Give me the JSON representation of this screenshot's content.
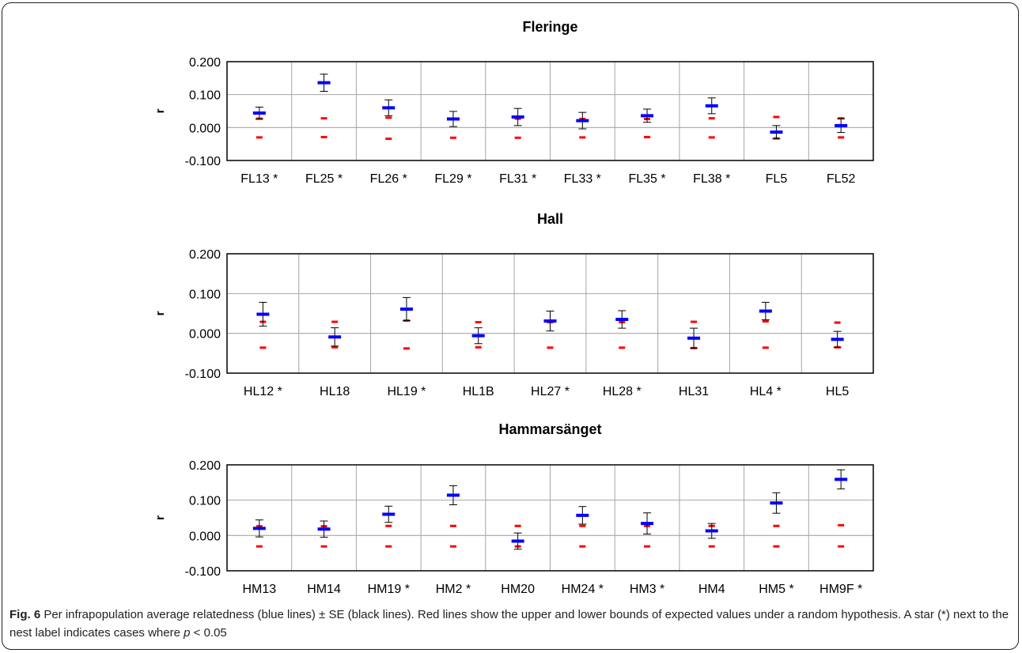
{
  "chart_data": [
    {
      "type": "scatter",
      "title": "Fleringe",
      "xlabel": "",
      "ylabel": "r",
      "ylim": [
        -0.1,
        0.2
      ],
      "yticks": [
        "0.200",
        "0.100",
        "0.000",
        "-0.100"
      ],
      "categories": [
        "FL13 *",
        "FL25 *",
        "FL26 *",
        "FL29 *",
        "FL31 *",
        "FL33 *",
        "FL35 *",
        "FL38 *",
        "FL5",
        "FL52"
      ],
      "mean": [
        0.044,
        0.136,
        0.06,
        0.026,
        0.032,
        0.021,
        0.036,
        0.066,
        -0.014,
        0.006
      ],
      "se": [
        0.018,
        0.026,
        0.024,
        0.023,
        0.026,
        0.025,
        0.02,
        0.024,
        0.02,
        0.021
      ],
      "upper_bound": [
        0.027,
        0.028,
        0.03,
        0.027,
        0.027,
        0.026,
        0.026,
        0.028,
        0.032,
        0.028
      ],
      "lower_bound": [
        -0.03,
        -0.029,
        -0.034,
        -0.031,
        -0.031,
        -0.03,
        -0.029,
        -0.03,
        -0.033,
        -0.03
      ],
      "grid": true
    },
    {
      "type": "scatter",
      "title": "Hall",
      "xlabel": "",
      "ylabel": "r",
      "ylim": [
        -0.1,
        0.2
      ],
      "yticks": [
        "0.200",
        "0.100",
        "0.000",
        "-0.100"
      ],
      "categories": [
        "HL12 *",
        "HL18",
        "HL19 *",
        "HL1B",
        "HL27 *",
        "HL28 *",
        "HL31",
        "HL4 *",
        "HL5"
      ],
      "mean": [
        0.048,
        -0.009,
        0.061,
        -0.006,
        0.031,
        0.035,
        -0.012,
        0.056,
        -0.015
      ],
      "se": [
        0.03,
        0.023,
        0.029,
        0.02,
        0.025,
        0.022,
        0.025,
        0.022,
        0.02
      ],
      "upper_bound": [
        0.029,
        0.029,
        0.032,
        0.028,
        0.028,
        0.028,
        0.029,
        0.03,
        0.027
      ],
      "lower_bound": [
        -0.036,
        -0.035,
        -0.038,
        -0.035,
        -0.036,
        -0.036,
        -0.037,
        -0.036,
        -0.035
      ],
      "grid": true
    },
    {
      "type": "scatter",
      "title": "Hammarsänget",
      "xlabel": "",
      "ylabel": "r",
      "ylim": [
        -0.1,
        0.2
      ],
      "yticks": [
        "0.200",
        "0.100",
        "0.000",
        "-0.100"
      ],
      "categories": [
        "HM13",
        "HM14",
        "HM19 *",
        "HM2 *",
        "HM20",
        "HM24 *",
        "HM3 *",
        "HM4",
        "HM5 *",
        "HM9F *"
      ],
      "mean": [
        0.02,
        0.018,
        0.06,
        0.114,
        -0.016,
        0.057,
        0.034,
        0.013,
        0.092,
        0.159
      ],
      "se": [
        0.024,
        0.023,
        0.023,
        0.027,
        0.023,
        0.025,
        0.03,
        0.021,
        0.029,
        0.027
      ],
      "upper_bound": [
        0.026,
        0.026,
        0.027,
        0.027,
        0.027,
        0.027,
        0.027,
        0.027,
        0.027,
        0.029
      ],
      "lower_bound": [
        -0.031,
        -0.031,
        -0.031,
        -0.031,
        -0.031,
        -0.031,
        -0.031,
        -0.031,
        -0.031,
        -0.031
      ],
      "grid": true
    }
  ],
  "colors": {
    "mean": "#0000ff",
    "bounds": "#ff0000",
    "se": "#000000",
    "grid": "#a6a6a6",
    "frame": "#231f20"
  },
  "caption": {
    "label": "Fig. 6",
    "text": " Per infrapopulation average relatedness (blue lines) ± SE (black lines). Red lines show the upper and lower bounds of expected values under a random hypothesis. A star (*) next to the nest label indicates cases where ",
    "p_symbol": "p",
    "p_value": " < 0.05"
  }
}
